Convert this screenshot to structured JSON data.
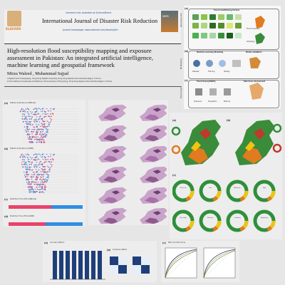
{
  "header": {
    "contents_line": "Contents lists available at ScienceDirect",
    "journal": "International Journal of Disaster Risk Reduction",
    "homepage": "journal homepage: www.elsevier.com/locate/ijdrr",
    "publisher": "ELSEVIER",
    "cover_text": "IJDRR"
  },
  "article": {
    "title": "High-resolution flood susceptibility mapping and exposure assessment in Pakistan: An integrated artificial intelligence, machine learning and geospatial framework",
    "authors": "Mirza Waleed , Muhammad Sajjad",
    "affiliation_a": "a Department of Geography, Hong Kong Baptist University, Hong Kong Special Administrative Region of China",
    "affiliation_b": "b The Institute of Landscape Architecture, The University of Hong Kong, Hong Kong Special Administrative Region of China"
  },
  "workflow": {
    "panel_a": "(a)",
    "panel_b": "(b)",
    "panel_c": "(c)",
    "side_a": "Data Preparation",
    "side_b": "ML Modeling",
    "side_c": "Flood Analysis",
    "title_a": "Flood Conditioning Factors",
    "title_b": "Machine Learning Modeling",
    "title_b2": "Model validation",
    "title_c": "Flood Susceptibility",
    "title_c2": "Risk Zone Assessment",
    "flood_inventory": "Flood Inventory",
    "sampling": "Sampling",
    "item_1": "Dataset",
    "item_2": "Training",
    "item_3": "Testing",
    "item_4": "Exposure",
    "item_5": "Population",
    "item_6": "Built-up"
  },
  "figures": {
    "a_label": "(a)",
    "a_title": "Feature Importance (XGBoost)",
    "b_label": "(b)",
    "b_title": "Feature Importance (LGBM)",
    "c_label": "(c)",
    "c_title": "Prediction Force Plot (XGBoost)",
    "d_label": "(d)",
    "d_title": "Prediction Force Plot (LGBM)",
    "maps_a": "(a)",
    "maps_b": "(b)",
    "maps_c": "(c)",
    "acc_label": "(a)",
    "acc_title": "Accuracy Metrics",
    "cm_label": "(b)",
    "cm_title": "Confusion Matrix",
    "roc_label": "(c)",
    "roc_title": "ROC and AUC Curve"
  },
  "donut_labels": [
    "Very Low",
    "Low",
    "Moderate",
    "High",
    "Very High",
    "Built-up",
    "Cropland",
    "Population"
  ],
  "colors": {
    "navy": "#1f3f7a",
    "green": "#2f8f3a",
    "orange": "#e07b1f",
    "red": "#c0392b",
    "yellow": "#f1c40f",
    "map_pink": "#c9a3c9",
    "map_green": "#3a8c3a"
  }
}
